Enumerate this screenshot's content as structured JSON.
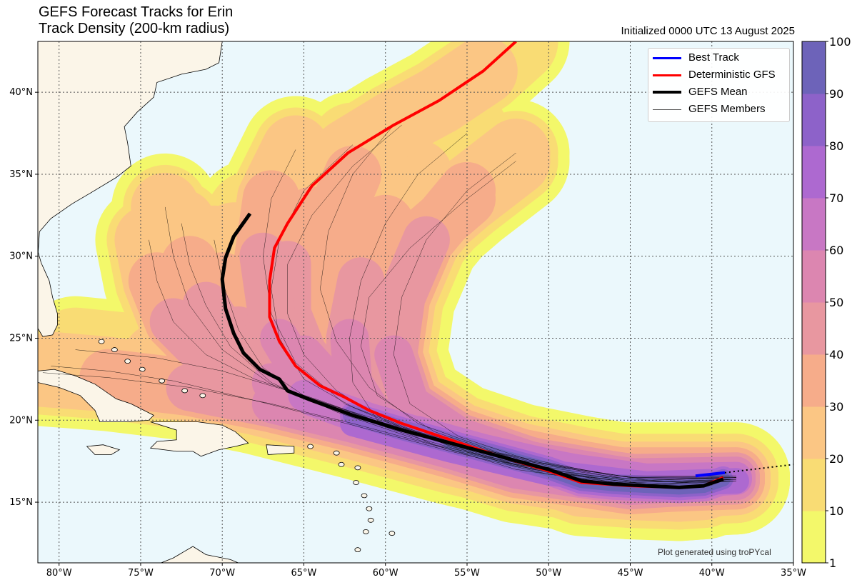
{
  "title_line1": "GEFS Forecast Tracks for Erin",
  "title_line2": "Track Density (200-km radius)",
  "initialized": "Initialized 0000 UTC 13 August 2025",
  "credit": "Plot generated using troPYcal",
  "legend": {
    "items": [
      {
        "label": "Best Track",
        "color": "#0000ff",
        "width": 3
      },
      {
        "label": "Deterministic GFS",
        "color": "#ff0000",
        "width": 3
      },
      {
        "label": "GEFS Mean",
        "color": "#000000",
        "width": 4
      },
      {
        "label": "GEFS Members",
        "color": "#000000",
        "width": 0.5
      }
    ]
  },
  "colorbar": {
    "ticks": [
      "1",
      "10",
      "20",
      "30",
      "40",
      "50",
      "60",
      "70",
      "80",
      "90",
      "100"
    ],
    "colors": [
      "#f3f86a",
      "#f9dc74",
      "#fbc684",
      "#f6ac8a",
      "#e897a0",
      "#dc86b0",
      "#c877c4",
      "#ad69d0",
      "#8d62c9",
      "#6d63b9"
    ]
  },
  "map": {
    "lon_range": [
      -81.3,
      -35
    ],
    "lat_range": [
      11.3,
      43.1
    ],
    "lon_ticks": [
      "80°W",
      "75°W",
      "70°W",
      "65°W",
      "60°W",
      "55°W",
      "50°W",
      "45°W",
      "40°W",
      "35°W"
    ],
    "lat_ticks": [
      "15°N",
      "20°N",
      "25°N",
      "30°N",
      "35°N",
      "40°N"
    ],
    "ocean_color": "#ebf8fc",
    "land_color": "#fbf5e8"
  },
  "tracks": {
    "best_track": [
      [
        -41,
        16.6
      ],
      [
        -39.2,
        16.8
      ]
    ],
    "best_track_extension": [
      [
        -39.2,
        16.8
      ],
      [
        -35,
        17.3
      ]
    ],
    "deterministic_gfs": [
      [
        -39.3,
        16.5
      ],
      [
        -40.5,
        16.0
      ],
      [
        -42,
        15.9
      ],
      [
        -45,
        16.0
      ],
      [
        -48,
        16.2
      ],
      [
        -50,
        16.9
      ],
      [
        -53,
        17.8
      ],
      [
        -56,
        18.8
      ],
      [
        -59,
        19.8
      ],
      [
        -61,
        20.6
      ],
      [
        -62.5,
        21.4
      ],
      [
        -64,
        22.1
      ],
      [
        -65.5,
        23.3
      ],
      [
        -66.5,
        24.8
      ],
      [
        -67.1,
        26.3
      ],
      [
        -67.1,
        28.5
      ],
      [
        -66.8,
        30.5
      ],
      [
        -66,
        32.0
      ],
      [
        -64.5,
        34.3
      ],
      [
        -62.3,
        36.3
      ],
      [
        -59.5,
        38.0
      ],
      [
        -56.7,
        39.5
      ],
      [
        -54,
        41.3
      ],
      [
        -52,
        43.1
      ]
    ],
    "gefs_mean": [
      [
        -39.3,
        16.4
      ],
      [
        -40.5,
        16.0
      ],
      [
        -42,
        15.9
      ],
      [
        -44,
        16.0
      ],
      [
        -46,
        16.1
      ],
      [
        -48,
        16.3
      ],
      [
        -50,
        17.0
      ],
      [
        -53,
        17.8
      ],
      [
        -56,
        18.6
      ],
      [
        -59,
        19.4
      ],
      [
        -62,
        20.3
      ],
      [
        -64.5,
        21.2
      ],
      [
        -66,
        21.8
      ],
      [
        -66.5,
        22.5
      ],
      [
        -67.7,
        23.1
      ],
      [
        -68.7,
        24.1
      ],
      [
        -69.3,
        25.3
      ],
      [
        -69.8,
        26.8
      ],
      [
        -70,
        28.6
      ],
      [
        -69.8,
        29.9
      ],
      [
        -69.3,
        31.2
      ],
      [
        -68.3,
        32.6
      ]
    ],
    "members": [
      [
        [
          -38.5,
          16.4
        ],
        [
          -42,
          16.2
        ],
        [
          -46,
          16.5
        ],
        [
          -50,
          17.3
        ],
        [
          -54,
          18.2
        ],
        [
          -58,
          19.3
        ],
        [
          -62,
          20.5
        ],
        [
          -66,
          21.8
        ],
        [
          -70,
          23.0
        ],
        [
          -74,
          23.8
        ],
        [
          -79,
          24.3
        ]
      ],
      [
        [
          -38.5,
          16.3
        ],
        [
          -44,
          16.1
        ],
        [
          -50,
          16.8
        ],
        [
          -56,
          18.2
        ],
        [
          -62,
          19.8
        ],
        [
          -67,
          21.0
        ],
        [
          -72,
          22.0
        ],
        [
          -77,
          22.6
        ],
        [
          -81,
          22.9
        ]
      ],
      [
        [
          -38.5,
          16.5
        ],
        [
          -44,
          16.4
        ],
        [
          -50,
          17.2
        ],
        [
          -56,
          18.7
        ],
        [
          -61,
          20.1
        ],
        [
          -65,
          21.5
        ],
        [
          -67.5,
          23.2
        ],
        [
          -69,
          25.5
        ],
        [
          -70,
          28.5
        ],
        [
          -70.5,
          31.0
        ]
      ],
      [
        [
          -38.5,
          16.5
        ],
        [
          -45,
          16.3
        ],
        [
          -51,
          17.1
        ],
        [
          -57,
          18.9
        ],
        [
          -62,
          20.8
        ],
        [
          -65,
          22.5
        ],
        [
          -66.5,
          25.0
        ],
        [
          -67,
          28.0
        ],
        [
          -66.5,
          31.0
        ],
        [
          -65,
          34.0
        ],
        [
          -62,
          36.8
        ]
      ],
      [
        [
          -38.5,
          16.5
        ],
        [
          -45,
          16.4
        ],
        [
          -52,
          17.4
        ],
        [
          -57,
          18.5
        ],
        [
          -60.5,
          20.0
        ],
        [
          -62,
          22.3
        ],
        [
          -62.2,
          25.0
        ],
        [
          -61.5,
          28.5
        ],
        [
          -60,
          32.0
        ],
        [
          -58,
          35.0
        ],
        [
          -55,
          37.5
        ]
      ],
      [
        [
          -38.5,
          16.6
        ],
        [
          -45,
          16.5
        ],
        [
          -51,
          17.5
        ],
        [
          -55.5,
          19.0
        ],
        [
          -58.5,
          21.0
        ],
        [
          -59.5,
          24.0
        ],
        [
          -59,
          27.5
        ],
        [
          -57.5,
          31.0
        ],
        [
          -55,
          34.0
        ],
        [
          -52,
          36.3
        ]
      ],
      [
        [
          -38.5,
          16.4
        ],
        [
          -45,
          16.2
        ],
        [
          -51,
          17.0
        ],
        [
          -56,
          18.4
        ],
        [
          -60,
          20.0
        ],
        [
          -63,
          21.8
        ],
        [
          -65,
          24.0
        ],
        [
          -66,
          26.5
        ],
        [
          -66,
          29.5
        ],
        [
          -64.5,
          32.5
        ],
        [
          -62,
          35.5
        ],
        [
          -59,
          38.0
        ]
      ],
      [
        [
          -38.5,
          16.4
        ],
        [
          -45,
          16.0
        ],
        [
          -52,
          17.0
        ],
        [
          -58,
          18.8
        ],
        [
          -63,
          20.5
        ],
        [
          -67,
          22.3
        ],
        [
          -69.5,
          24.5
        ],
        [
          -71,
          27.0
        ],
        [
          -72,
          29.5
        ],
        [
          -72.5,
          32.0
        ]
      ],
      [
        [
          -38.5,
          16.5
        ],
        [
          -45,
          16.3
        ],
        [
          -52,
          17.3
        ],
        [
          -58,
          19.1
        ],
        [
          -62.5,
          21.0
        ],
        [
          -65.5,
          23.5
        ],
        [
          -67,
          26.5
        ],
        [
          -67.5,
          30.0
        ],
        [
          -67,
          33.5
        ],
        [
          -65.5,
          36.5
        ]
      ],
      [
        [
          -38.5,
          16.3
        ],
        [
          -46,
          16.2
        ],
        [
          -53,
          17.5
        ],
        [
          -59,
          19.4
        ],
        [
          -64,
          21.2
        ],
        [
          -68,
          22.5
        ],
        [
          -71,
          24.0
        ],
        [
          -73,
          26.0
        ],
        [
          -74,
          28.5
        ],
        [
          -74.5,
          31.0
        ]
      ],
      [
        [
          -38.5,
          16.6
        ],
        [
          -46,
          16.6
        ],
        [
          -53,
          18.0
        ],
        [
          -58,
          19.8
        ],
        [
          -61,
          22.0
        ],
        [
          -63,
          24.8
        ],
        [
          -64,
          28.0
        ],
        [
          -63.5,
          31.5
        ],
        [
          -62,
          35.0
        ],
        [
          -59.5,
          38.0
        ]
      ],
      [
        [
          -38.5,
          16.5
        ],
        [
          -45,
          16.5
        ],
        [
          -52,
          17.6
        ],
        [
          -57,
          19.3
        ],
        [
          -60.5,
          21.5
        ],
        [
          -61.5,
          24.5
        ],
        [
          -61,
          27.5
        ],
        [
          -58.5,
          30.5
        ],
        [
          -55,
          33.5
        ],
        [
          -52,
          35.8
        ]
      ],
      [
        [
          -38.5,
          16.4
        ],
        [
          -45,
          16.2
        ],
        [
          -52,
          17.2
        ],
        [
          -58,
          18.9
        ],
        [
          -63,
          20.6
        ],
        [
          -67,
          22.2
        ],
        [
          -70,
          24.3
        ],
        [
          -72,
          27.0
        ],
        [
          -73,
          30.0
        ],
        [
          -73.5,
          33.0
        ]
      ],
      [
        [
          -38.5,
          16.3
        ],
        [
          -44,
          16.0
        ],
        [
          -50,
          16.7
        ],
        [
          -56,
          18.1
        ],
        [
          -62,
          19.7
        ],
        [
          -68,
          21.2
        ],
        [
          -73,
          22.4
        ],
        [
          -77,
          23.0
        ],
        [
          -80.5,
          23.3
        ]
      ]
    ]
  }
}
